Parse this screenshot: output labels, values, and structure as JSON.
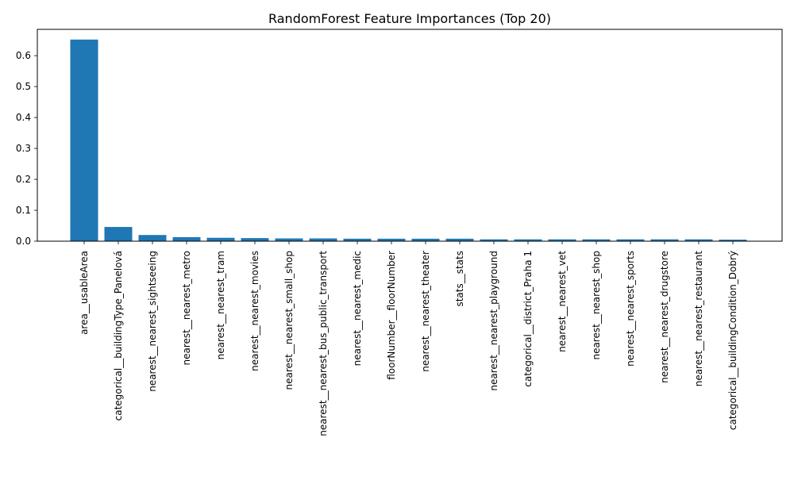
{
  "chart_data": {
    "type": "bar",
    "title": "RandomForest Feature Importances (Top 20)",
    "xlabel": "",
    "ylabel": "",
    "categories": [
      "area__usableArea",
      "categorical__buildingType_Panelová",
      "nearest__nearest_sightseeing",
      "nearest__nearest_metro",
      "nearest__nearest_tram",
      "nearest__nearest_movies",
      "nearest__nearest_small_shop",
      "nearest__nearest_bus_public_transport",
      "nearest__nearest_medic",
      "floorNumber__floorNumber",
      "nearest__nearest_theater",
      "stats__stats",
      "nearest__nearest_playground",
      "categorical__district_Praha 1",
      "nearest__nearest_vet",
      "nearest__nearest_shop",
      "nearest__nearest_sports",
      "nearest__nearest_drugstore",
      "nearest__nearest_restaurant",
      "categorical__buildingCondition_Dobrý"
    ],
    "values": [
      0.652,
      0.046,
      0.02,
      0.013,
      0.011,
      0.01,
      0.009,
      0.009,
      0.008,
      0.008,
      0.008,
      0.008,
      0.006,
      0.006,
      0.006,
      0.006,
      0.006,
      0.006,
      0.006,
      0.005
    ],
    "ylim": [
      0,
      0.685
    ],
    "yticks": [
      0.0,
      0.1,
      0.2,
      0.3,
      0.4,
      0.5,
      0.6
    ],
    "ytick_labels": [
      "0.0",
      "0.1",
      "0.2",
      "0.3",
      "0.4",
      "0.5",
      "0.6"
    ],
    "grid": false,
    "legend": "none",
    "bar_color": "#1f77b4"
  }
}
